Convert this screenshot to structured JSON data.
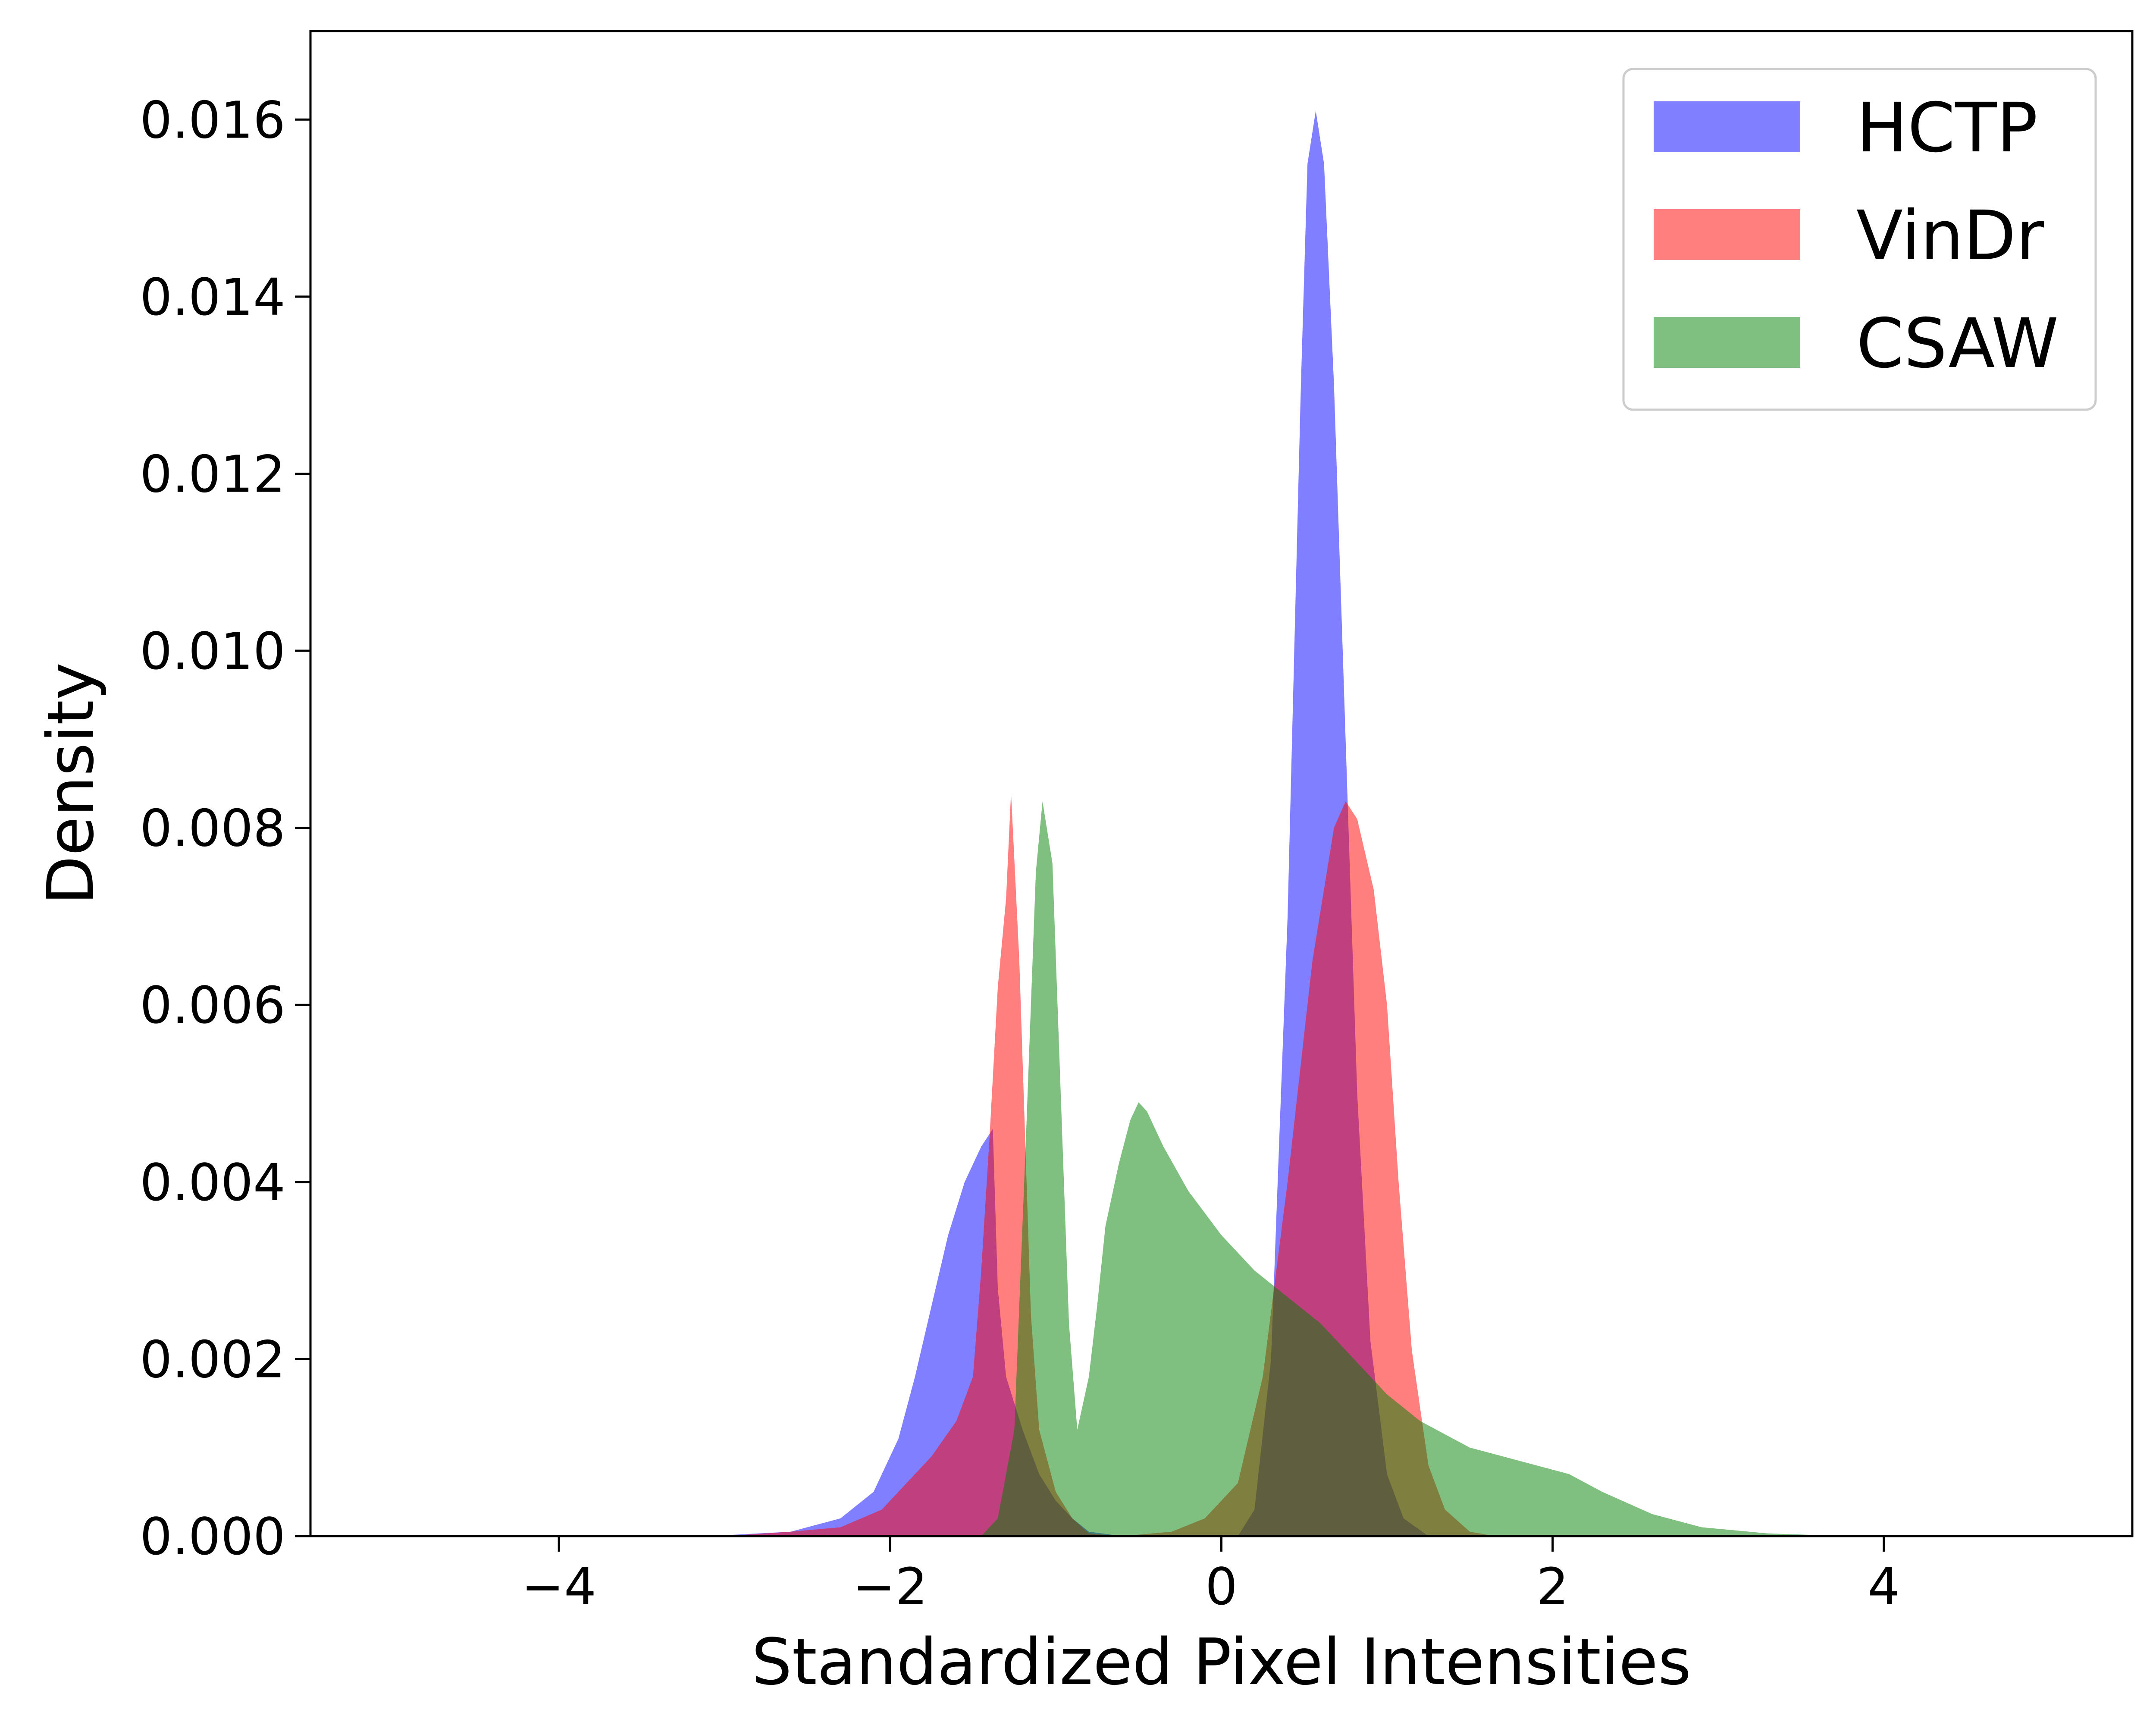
{
  "chart_data": {
    "type": "histogram",
    "title": "",
    "xlabel": "Standardized Pixel Intensities",
    "ylabel": "Density",
    "xlim": [
      -5.5,
      5.5
    ],
    "ylim": [
      0,
      0.017
    ],
    "x_ticks": [
      -4,
      -2,
      0,
      2,
      4
    ],
    "x_tick_labels": [
      "−4",
      "−2",
      "0",
      "2",
      "4"
    ],
    "y_ticks": [
      0,
      0.002,
      0.004,
      0.006,
      0.008,
      0.01,
      0.012,
      0.014,
      0.016
    ],
    "y_tick_labels": [
      "0.000",
      "0.002",
      "0.004",
      "0.006",
      "0.008",
      "0.010",
      "0.012",
      "0.014",
      "0.016"
    ],
    "grid": false,
    "legend_position": "top-right",
    "series": [
      {
        "name": "HCTP",
        "color": "#0000ff",
        "opacity": 0.5,
        "points": [
          [
            -3.1,
            0.0
          ],
          [
            -2.6,
            5e-05
          ],
          [
            -2.3,
            0.0002
          ],
          [
            -2.1,
            0.0005
          ],
          [
            -1.95,
            0.0011
          ],
          [
            -1.85,
            0.0018
          ],
          [
            -1.75,
            0.0026
          ],
          [
            -1.65,
            0.0034
          ],
          [
            -1.55,
            0.004
          ],
          [
            -1.45,
            0.0044
          ],
          [
            -1.38,
            0.0046
          ],
          [
            -1.35,
            0.0028
          ],
          [
            -1.3,
            0.0018
          ],
          [
            -1.2,
            0.0012
          ],
          [
            -1.1,
            0.0007
          ],
          [
            -1.0,
            0.0004
          ],
          [
            -0.9,
            0.0002
          ],
          [
            -0.8,
            5e-05
          ],
          [
            -0.6,
            0.0
          ],
          [
            0.1,
            0.0
          ],
          [
            0.2,
            0.0003
          ],
          [
            0.3,
            0.002
          ],
          [
            0.4,
            0.007
          ],
          [
            0.48,
            0.013
          ],
          [
            0.52,
            0.0155
          ],
          [
            0.57,
            0.0161
          ],
          [
            0.62,
            0.0155
          ],
          [
            0.68,
            0.013
          ],
          [
            0.75,
            0.009
          ],
          [
            0.82,
            0.005
          ],
          [
            0.9,
            0.0022
          ],
          [
            1.0,
            0.0007
          ],
          [
            1.1,
            0.0002
          ],
          [
            1.25,
            0.0
          ]
        ]
      },
      {
        "name": "VinDr",
        "color": "#ff0000",
        "opacity": 0.5,
        "points": [
          [
            -3.0,
            0.0
          ],
          [
            -2.6,
            5e-05
          ],
          [
            -2.3,
            0.0001
          ],
          [
            -2.05,
            0.0003
          ],
          [
            -1.9,
            0.0006
          ],
          [
            -1.75,
            0.0009
          ],
          [
            -1.6,
            0.0013
          ],
          [
            -1.5,
            0.0018
          ],
          [
            -1.45,
            0.003
          ],
          [
            -1.4,
            0.0045
          ],
          [
            -1.35,
            0.0062
          ],
          [
            -1.3,
            0.0072
          ],
          [
            -1.27,
            0.0084
          ],
          [
            -1.22,
            0.0065
          ],
          [
            -1.15,
            0.0025
          ],
          [
            -1.1,
            0.0012
          ],
          [
            -1.0,
            0.0005
          ],
          [
            -0.9,
            0.0002
          ],
          [
            -0.8,
            3e-05
          ],
          [
            -0.6,
            0.0
          ],
          [
            -0.3,
            5e-05
          ],
          [
            -0.1,
            0.0002
          ],
          [
            0.1,
            0.0006
          ],
          [
            0.25,
            0.0018
          ],
          [
            0.4,
            0.004
          ],
          [
            0.55,
            0.0065
          ],
          [
            0.68,
            0.008
          ],
          [
            0.75,
            0.0083
          ],
          [
            0.82,
            0.0081
          ],
          [
            0.92,
            0.0073
          ],
          [
            1.0,
            0.006
          ],
          [
            1.07,
            0.004
          ],
          [
            1.15,
            0.0021
          ],
          [
            1.25,
            0.0008
          ],
          [
            1.35,
            0.0003
          ],
          [
            1.5,
            5e-05
          ],
          [
            1.65,
            0.0
          ]
        ]
      },
      {
        "name": "CSAW",
        "color": "#008000",
        "opacity": 0.5,
        "points": [
          [
            -1.45,
            0.0
          ],
          [
            -1.35,
            0.0002
          ],
          [
            -1.25,
            0.0012
          ],
          [
            -1.18,
            0.0045
          ],
          [
            -1.12,
            0.0075
          ],
          [
            -1.08,
            0.0083
          ],
          [
            -1.02,
            0.0076
          ],
          [
            -0.97,
            0.005
          ],
          [
            -0.92,
            0.0024
          ],
          [
            -0.87,
            0.0012
          ],
          [
            -0.8,
            0.0018
          ],
          [
            -0.75,
            0.0026
          ],
          [
            -0.7,
            0.0035
          ],
          [
            -0.62,
            0.0042
          ],
          [
            -0.55,
            0.0047
          ],
          [
            -0.5,
            0.0049
          ],
          [
            -0.45,
            0.0048
          ],
          [
            -0.35,
            0.0044
          ],
          [
            -0.2,
            0.0039
          ],
          [
            0.0,
            0.0034
          ],
          [
            0.2,
            0.003
          ],
          [
            0.4,
            0.0027
          ],
          [
            0.6,
            0.0024
          ],
          [
            0.8,
            0.002
          ],
          [
            1.0,
            0.0016
          ],
          [
            1.2,
            0.0013
          ],
          [
            1.5,
            0.001
          ],
          [
            1.8,
            0.00085
          ],
          [
            2.1,
            0.0007
          ],
          [
            2.3,
            0.0005
          ],
          [
            2.6,
            0.00025
          ],
          [
            2.9,
            0.0001
          ],
          [
            3.3,
            3e-05
          ],
          [
            3.8,
            0.0
          ]
        ]
      }
    ]
  }
}
